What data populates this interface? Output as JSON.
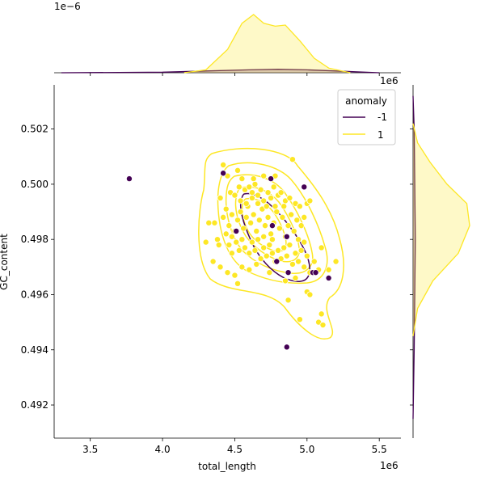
{
  "chart_data": {
    "type": "scatter",
    "subtype": "jointplot-with-kde",
    "xlabel": "total_length",
    "ylabel": "GC_content",
    "x_tick_labels": [
      "3.5",
      "4.0",
      "4.5",
      "5.0",
      "5.5"
    ],
    "x_ticks": [
      3.5,
      4.0,
      4.5,
      5.0,
      5.5
    ],
    "y_tick_labels": [
      "0.492",
      "0.494",
      "0.496",
      "0.498",
      "0.500",
      "0.502"
    ],
    "y_ticks": [
      0.492,
      0.494,
      0.496,
      0.498,
      0.5,
      0.502
    ],
    "x_offset_text": "1e6",
    "y_offset_text": "",
    "marginal_x_offset_text": "1e−6",
    "marginal_y_offset_text": "1e6",
    "xlim": [
      3.25,
      5.65
    ],
    "ylim": [
      0.4908,
      0.5036
    ],
    "grid": false,
    "legend": {
      "title": "anomaly",
      "placement": "top-right",
      "entries": [
        {
          "label": "-1",
          "color": "#440154"
        },
        {
          "label": "1",
          "color": "#fde725"
        }
      ]
    },
    "series": [
      {
        "name": "1",
        "color": "#fde725",
        "points": [
          [
            4.42,
            0.5007
          ],
          [
            4.45,
            0.5003
          ],
          [
            4.52,
            0.5005
          ],
          [
            4.55,
            0.5002
          ],
          [
            4.63,
            0.5002
          ],
          [
            4.7,
            0.5003
          ],
          [
            4.78,
            0.5003
          ],
          [
            4.9,
            0.5009
          ],
          [
            4.4,
            0.4995
          ],
          [
            4.47,
            0.4997
          ],
          [
            4.5,
            0.4996
          ],
          [
            4.53,
            0.4999
          ],
          [
            4.57,
            0.4998
          ],
          [
            4.6,
            0.4999
          ],
          [
            4.62,
            0.4997
          ],
          [
            4.64,
            0.5
          ],
          [
            4.66,
            0.4996
          ],
          [
            4.68,
            0.4998
          ],
          [
            4.7,
            0.4994
          ],
          [
            4.73,
            0.4997
          ],
          [
            4.75,
            0.4995
          ],
          [
            4.77,
            0.4999
          ],
          [
            4.8,
            0.4996
          ],
          [
            4.82,
            0.4997
          ],
          [
            4.85,
            0.4994
          ],
          [
            4.88,
            0.4995
          ],
          [
            4.92,
            0.4993
          ],
          [
            4.95,
            0.4992
          ],
          [
            5.0,
            0.4993
          ],
          [
            5.02,
            0.4994
          ],
          [
            4.36,
            0.4986
          ],
          [
            4.38,
            0.498
          ],
          [
            4.39,
            0.4978
          ],
          [
            4.42,
            0.4988
          ],
          [
            4.44,
            0.4991
          ],
          [
            4.46,
            0.4985
          ],
          [
            4.48,
            0.4989
          ],
          [
            4.5,
            0.4983
          ],
          [
            4.52,
            0.4987
          ],
          [
            4.54,
            0.499
          ],
          [
            4.56,
            0.4984
          ],
          [
            4.58,
            0.4988
          ],
          [
            4.59,
            0.4992
          ],
          [
            4.61,
            0.4986
          ],
          [
            4.63,
            0.4989
          ],
          [
            4.65,
            0.4983
          ],
          [
            4.67,
            0.4987
          ],
          [
            4.69,
            0.4991
          ],
          [
            4.71,
            0.4985
          ],
          [
            4.73,
            0.4988
          ],
          [
            4.75,
            0.4982
          ],
          [
            4.77,
            0.4986
          ],
          [
            4.79,
            0.499
          ],
          [
            4.81,
            0.4984
          ],
          [
            4.83,
            0.4988
          ],
          [
            4.85,
            0.4981
          ],
          [
            4.87,
            0.4985
          ],
          [
            4.89,
            0.4989
          ],
          [
            4.91,
            0.4983
          ],
          [
            4.93,
            0.4987
          ],
          [
            4.96,
            0.4985
          ],
          [
            4.98,
            0.4988
          ],
          [
            4.46,
            0.4978
          ],
          [
            4.48,
            0.4975
          ],
          [
            4.51,
            0.4979
          ],
          [
            4.53,
            0.4976
          ],
          [
            4.55,
            0.498
          ],
          [
            4.57,
            0.4977
          ],
          [
            4.6,
            0.4975
          ],
          [
            4.62,
            0.4979
          ],
          [
            4.64,
            0.4976
          ],
          [
            4.66,
            0.498
          ],
          [
            4.68,
            0.4973
          ],
          [
            4.7,
            0.4977
          ],
          [
            4.72,
            0.4974
          ],
          [
            4.74,
            0.4978
          ],
          [
            4.76,
            0.4975
          ],
          [
            4.78,
            0.4972
          ],
          [
            4.8,
            0.4976
          ],
          [
            4.82,
            0.4973
          ],
          [
            4.84,
            0.4977
          ],
          [
            4.86,
            0.4974
          ],
          [
            4.88,
            0.4978
          ],
          [
            4.9,
            0.4971
          ],
          [
            4.92,
            0.4975
          ],
          [
            4.94,
            0.4972
          ],
          [
            4.96,
            0.4976
          ],
          [
            4.98,
            0.497
          ],
          [
            5.0,
            0.4974
          ],
          [
            5.02,
            0.4968
          ],
          [
            5.05,
            0.4972
          ],
          [
            5.08,
            0.4969
          ],
          [
            5.1,
            0.4977
          ],
          [
            5.15,
            0.4969
          ],
          [
            5.2,
            0.4972
          ],
          [
            4.35,
            0.4972
          ],
          [
            4.4,
            0.497
          ],
          [
            4.45,
            0.4968
          ],
          [
            4.5,
            0.4967
          ],
          [
            4.55,
            0.497
          ],
          [
            4.6,
            0.4969
          ],
          [
            4.65,
            0.4971
          ],
          [
            4.52,
            0.4964
          ],
          [
            4.85,
            0.4965
          ],
          [
            4.92,
            0.4966
          ],
          [
            5.0,
            0.4961
          ],
          [
            5.02,
            0.496
          ],
          [
            4.87,
            0.4958
          ],
          [
            4.95,
            0.4951
          ],
          [
            5.1,
            0.4953
          ],
          [
            5.08,
            0.495
          ],
          [
            5.11,
            0.4949
          ],
          [
            4.3,
            0.4979
          ],
          [
            4.32,
            0.4986
          ],
          [
            4.58,
            0.4993
          ],
          [
            4.62,
            0.4995
          ],
          [
            4.66,
            0.4993
          ],
          [
            4.72,
            0.4992
          ],
          [
            4.78,
            0.4992
          ],
          [
            4.84,
            0.4992
          ],
          [
            4.54,
            0.4994
          ],
          [
            4.44,
            0.4982
          ],
          [
            4.48,
            0.4981
          ],
          [
            4.7,
            0.4981
          ],
          [
            4.76,
            0.498
          ],
          [
            4.94,
            0.498
          ],
          [
            4.98,
            0.4979
          ],
          [
            4.74,
            0.4968
          ]
        ]
      },
      {
        "name": "-1",
        "color": "#440154",
        "points": [
          [
            3.77,
            0.5002
          ],
          [
            4.42,
            0.5004
          ],
          [
            4.75,
            0.5002
          ],
          [
            4.98,
            0.4999
          ],
          [
            4.51,
            0.4983
          ],
          [
            4.76,
            0.4985
          ],
          [
            4.86,
            0.4981
          ],
          [
            4.79,
            0.4972
          ],
          [
            4.87,
            0.4968
          ],
          [
            5.04,
            0.4968
          ],
          [
            5.06,
            0.4968
          ],
          [
            5.15,
            0.4966
          ],
          [
            4.86,
            0.4941
          ]
        ]
      }
    ],
    "kde_levels_note": "contour lines for each anomaly group",
    "marginal_x": {
      "series": [
        {
          "name": "1",
          "color": "#fde725",
          "x": [
            4.15,
            4.3,
            4.45,
            4.55,
            4.63,
            4.7,
            4.78,
            4.85,
            4.95,
            5.05,
            5.15,
            5.3
          ],
          "density": [
            0,
            0.05,
            0.4,
            0.85,
            1.0,
            0.85,
            0.8,
            0.82,
            0.55,
            0.25,
            0.08,
            0
          ]
        },
        {
          "name": "-1",
          "color": "#440154",
          "x": [
            3.3,
            3.7,
            4.0,
            4.3,
            4.6,
            4.8,
            5.0,
            5.2,
            5.5
          ],
          "density": [
            0,
            0.005,
            0.01,
            0.03,
            0.05,
            0.06,
            0.05,
            0.03,
            0
          ]
        }
      ]
    },
    "marginal_y": {
      "series": [
        {
          "name": "1",
          "color": "#fde725",
          "y": [
            0.4945,
            0.4955,
            0.4965,
            0.4975,
            0.4985,
            0.4993,
            0.5,
            0.5008,
            0.5015,
            0.5022
          ],
          "density": [
            0,
            0.08,
            0.35,
            0.8,
            1.0,
            0.95,
            0.6,
            0.3,
            0.08,
            0
          ]
        },
        {
          "name": "-1",
          "color": "#440154",
          "y": [
            0.4915,
            0.494,
            0.496,
            0.498,
            0.5,
            0.502,
            0.5032
          ],
          "density": [
            0,
            0.02,
            0.03,
            0.04,
            0.03,
            0.02,
            0
          ]
        }
      ]
    }
  }
}
